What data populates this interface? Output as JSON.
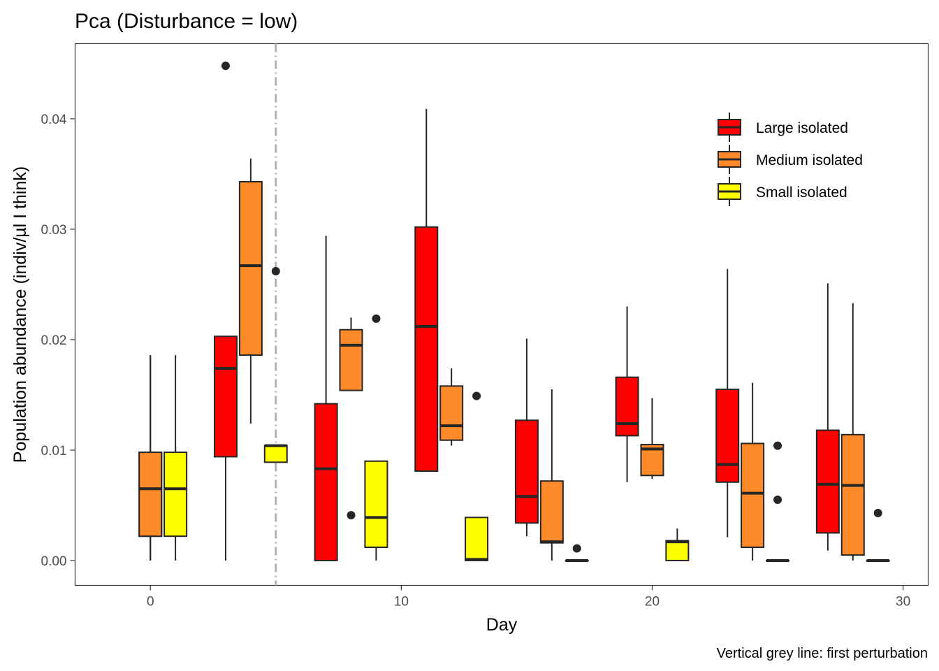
{
  "chart_data": {
    "type": "boxplot",
    "title": "Pca (Disturbance = low)",
    "xlabel": "Day",
    "ylabel": "Population abundance (indiv/µl I think)",
    "caption": "Vertical grey line: first perturbation",
    "xlim": [
      -3,
      31
    ],
    "ylim": [
      -0.00225,
      0.0468
    ],
    "x_ticks": [
      0,
      10,
      20,
      30
    ],
    "y_ticks": [
      0.0,
      0.01,
      0.02,
      0.03,
      0.04
    ],
    "y_tick_labels": [
      "0.00",
      "0.01",
      "0.02",
      "0.03",
      "0.04"
    ],
    "grid": false,
    "legend_position": "top-right",
    "vline": {
      "x": 5,
      "color": "#b3b3b3",
      "style": "dot-dash"
    },
    "series": [
      {
        "name": "Large isolated",
        "color": "#ff0000",
        "boxes": [
          {
            "day": 0,
            "whisker_low": 0.0,
            "q1": 0.0022,
            "median": 0.0065,
            "q3": 0.0098,
            "whisker_high": 0.0186,
            "outliers": []
          },
          {
            "day": 3,
            "whisker_low": 0.0,
            "q1": 0.0094,
            "median": 0.0174,
            "q3": 0.0203,
            "whisker_high": 0.0203,
            "outliers": [
              0.0448
            ]
          },
          {
            "day": 7,
            "whisker_low": 0.0,
            "q1": 0.0,
            "median": 0.0083,
            "q3": 0.0142,
            "whisker_high": 0.0294,
            "outliers": []
          },
          {
            "day": 11,
            "whisker_low": 0.0081,
            "q1": 0.0081,
            "median": 0.0212,
            "q3": 0.0302,
            "whisker_high": 0.0409,
            "outliers": []
          },
          {
            "day": 15,
            "whisker_low": 0.0022,
            "q1": 0.0034,
            "median": 0.0058,
            "q3": 0.0127,
            "whisker_high": 0.0201,
            "outliers": []
          },
          {
            "day": 19,
            "whisker_low": 0.0071,
            "q1": 0.0113,
            "median": 0.0124,
            "q3": 0.0166,
            "whisker_high": 0.023,
            "outliers": []
          },
          {
            "day": 23,
            "whisker_low": 0.0021,
            "q1": 0.0071,
            "median": 0.0087,
            "q3": 0.0155,
            "whisker_high": 0.0264,
            "outliers": []
          },
          {
            "day": 27,
            "whisker_low": 0.0009,
            "q1": 0.0025,
            "median": 0.0069,
            "q3": 0.0118,
            "whisker_high": 0.0251,
            "outliers": []
          }
        ]
      },
      {
        "name": "Medium isolated",
        "color": "#ff8a2a",
        "boxes": [
          {
            "day": 0,
            "whisker_low": 0.0,
            "q1": 0.0022,
            "median": 0.0065,
            "q3": 0.0098,
            "whisker_high": 0.0186,
            "outliers": []
          },
          {
            "day": 4,
            "whisker_low": 0.0124,
            "q1": 0.0186,
            "median": 0.0267,
            "q3": 0.0343,
            "whisker_high": 0.0364,
            "outliers": []
          },
          {
            "day": 8,
            "whisker_low": 0.0154,
            "q1": 0.0154,
            "median": 0.0195,
            "q3": 0.0209,
            "whisker_high": 0.022,
            "outliers": [
              0.0041
            ]
          },
          {
            "day": 12,
            "whisker_low": 0.0104,
            "q1": 0.0109,
            "median": 0.0122,
            "q3": 0.0158,
            "whisker_high": 0.0174,
            "outliers": []
          },
          {
            "day": 16,
            "whisker_low": 0.0,
            "q1": 0.0016,
            "median": 0.0017,
            "q3": 0.0072,
            "whisker_high": 0.0155,
            "outliers": []
          },
          {
            "day": 20,
            "whisker_low": 0.0074,
            "q1": 0.0077,
            "median": 0.0101,
            "q3": 0.0105,
            "whisker_high": 0.0147,
            "outliers": []
          },
          {
            "day": 24,
            "whisker_low": 0.0,
            "q1": 0.0012,
            "median": 0.0061,
            "q3": 0.0106,
            "whisker_high": 0.0161,
            "outliers": []
          },
          {
            "day": 28,
            "whisker_low": 0.0,
            "q1": 0.0005,
            "median": 0.0068,
            "q3": 0.0114,
            "whisker_high": 0.0233,
            "outliers": []
          }
        ]
      },
      {
        "name": "Small isolated",
        "color": "#ffff00",
        "boxes": [
          {
            "day": 1,
            "whisker_low": 0.0,
            "q1": 0.0022,
            "median": 0.0065,
            "q3": 0.0098,
            "whisker_high": 0.0186,
            "outliers": []
          },
          {
            "day": 5,
            "whisker_low": 0.0089,
            "q1": 0.0089,
            "median": 0.0104,
            "q3": 0.0104,
            "whisker_high": 0.0104,
            "outliers": [
              0.0262
            ]
          },
          {
            "day": 9,
            "whisker_low": 0.0,
            "q1": 0.0012,
            "median": 0.0039,
            "q3": 0.009,
            "whisker_high": 0.009,
            "outliers": [
              0.0219
            ]
          },
          {
            "day": 13,
            "whisker_low": 0.0,
            "q1": 0.0,
            "median": 0.0001,
            "q3": 0.0039,
            "whisker_high": 0.0039,
            "outliers": [
              0.0149
            ]
          },
          {
            "day": 17,
            "whisker_low": 0.0,
            "q1": 0.0,
            "median": 0.0,
            "q3": 0.0,
            "whisker_high": 0.0,
            "outliers": [
              0.0011
            ]
          },
          {
            "day": 21,
            "whisker_low": 0.0,
            "q1": 0.0,
            "median": 0.0017,
            "q3": 0.0018,
            "whisker_high": 0.0029,
            "outliers": []
          },
          {
            "day": 25,
            "whisker_low": 0.0,
            "q1": 0.0,
            "median": 0.0,
            "q3": 0.0,
            "whisker_high": 0.0,
            "outliers": [
              0.0104,
              0.0055
            ]
          },
          {
            "day": 29,
            "whisker_low": 0.0,
            "q1": 0.0,
            "median": 0.0,
            "q3": 0.0,
            "whisker_high": 0.0,
            "outliers": [
              0.0043
            ]
          }
        ]
      }
    ]
  }
}
